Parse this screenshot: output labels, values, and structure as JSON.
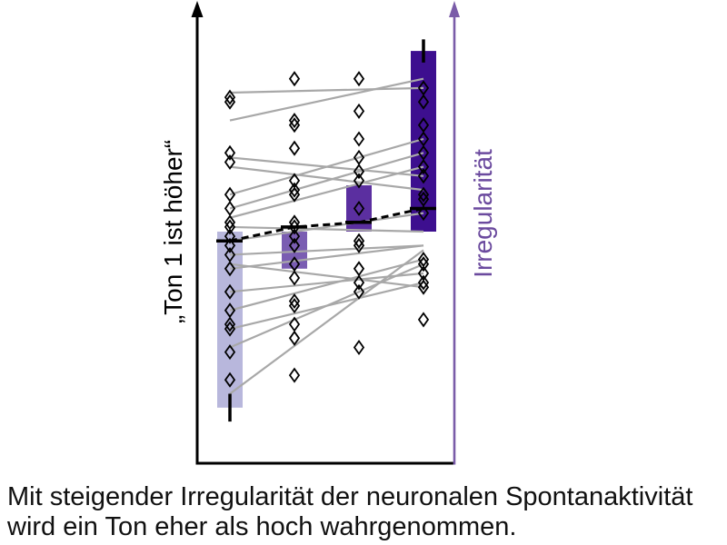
{
  "chart_data": {
    "type": "bar",
    "title": "",
    "xlabel": "",
    "ylabel": "„Ton 1 ist höher“",
    "y2label": "Irregularität",
    "ylim": [
      0,
      1
    ],
    "grid": false,
    "legend": "none",
    "baseline": 0.5,
    "bars": [
      {
        "value": 0.12,
        "error": 0.03,
        "color": "#b8b7dc"
      },
      {
        "value": 0.42,
        "error": null,
        "color": "#7a5db2"
      },
      {
        "value": 0.6,
        "error": null,
        "color": "#5b2fa0"
      },
      {
        "value": 0.89,
        "error": 0.025,
        "color": "#3d0f8f"
      }
    ],
    "mean_trend": [
      0.48,
      0.51,
      0.52,
      0.55
    ],
    "points": [
      [
        0.79,
        0.78,
        0.67,
        0.65,
        0.58,
        0.55,
        0.52,
        0.51,
        0.49,
        0.47,
        0.45,
        0.42,
        0.37,
        0.33,
        0.3,
        0.29,
        0.24,
        0.18
      ],
      [
        0.83,
        0.74,
        0.73,
        0.68,
        0.61,
        0.59,
        0.58,
        0.52,
        0.51,
        0.49,
        0.47,
        0.43,
        0.4,
        0.35,
        0.34,
        0.3,
        0.27,
        0.19
      ],
      [
        0.83,
        0.76,
        0.7,
        0.66,
        0.63,
        0.61,
        0.55,
        0.48,
        0.47,
        0.42,
        0.39,
        0.37,
        0.25
      ],
      [
        0.81,
        0.78,
        0.73,
        0.7,
        0.67,
        0.64,
        0.62,
        0.58,
        0.57,
        0.54,
        0.44,
        0.43,
        0.41,
        0.39,
        0.38,
        0.31
      ]
    ],
    "subject_lines": [
      [
        0.8,
        0.81
      ],
      [
        0.74,
        0.83
      ],
      [
        0.66,
        0.62
      ],
      [
        0.64,
        0.59
      ],
      [
        0.58,
        0.7
      ],
      [
        0.55,
        0.67
      ],
      [
        0.53,
        0.64
      ],
      [
        0.51,
        0.5
      ],
      [
        0.48,
        0.54
      ],
      [
        0.45,
        0.47
      ],
      [
        0.43,
        0.38
      ],
      [
        0.42,
        0.47
      ],
      [
        0.37,
        0.41
      ],
      [
        0.33,
        0.44
      ],
      [
        0.29,
        0.39
      ],
      [
        0.25,
        0.43
      ],
      [
        0.15,
        0.46
      ]
    ],
    "colors": {
      "left_axis": "#000000",
      "right_axis": "#7a5ca8",
      "y2label": "#6b4a9e",
      "subject_line": "#a8a8a8",
      "point_outline": "#000000",
      "trend": "#000000"
    }
  },
  "caption": {
    "line1": "Mit steigender Irregularität der neuronalen Spontanaktivität",
    "line2": "wird ein Ton eher als hoch wahrgenommen."
  }
}
